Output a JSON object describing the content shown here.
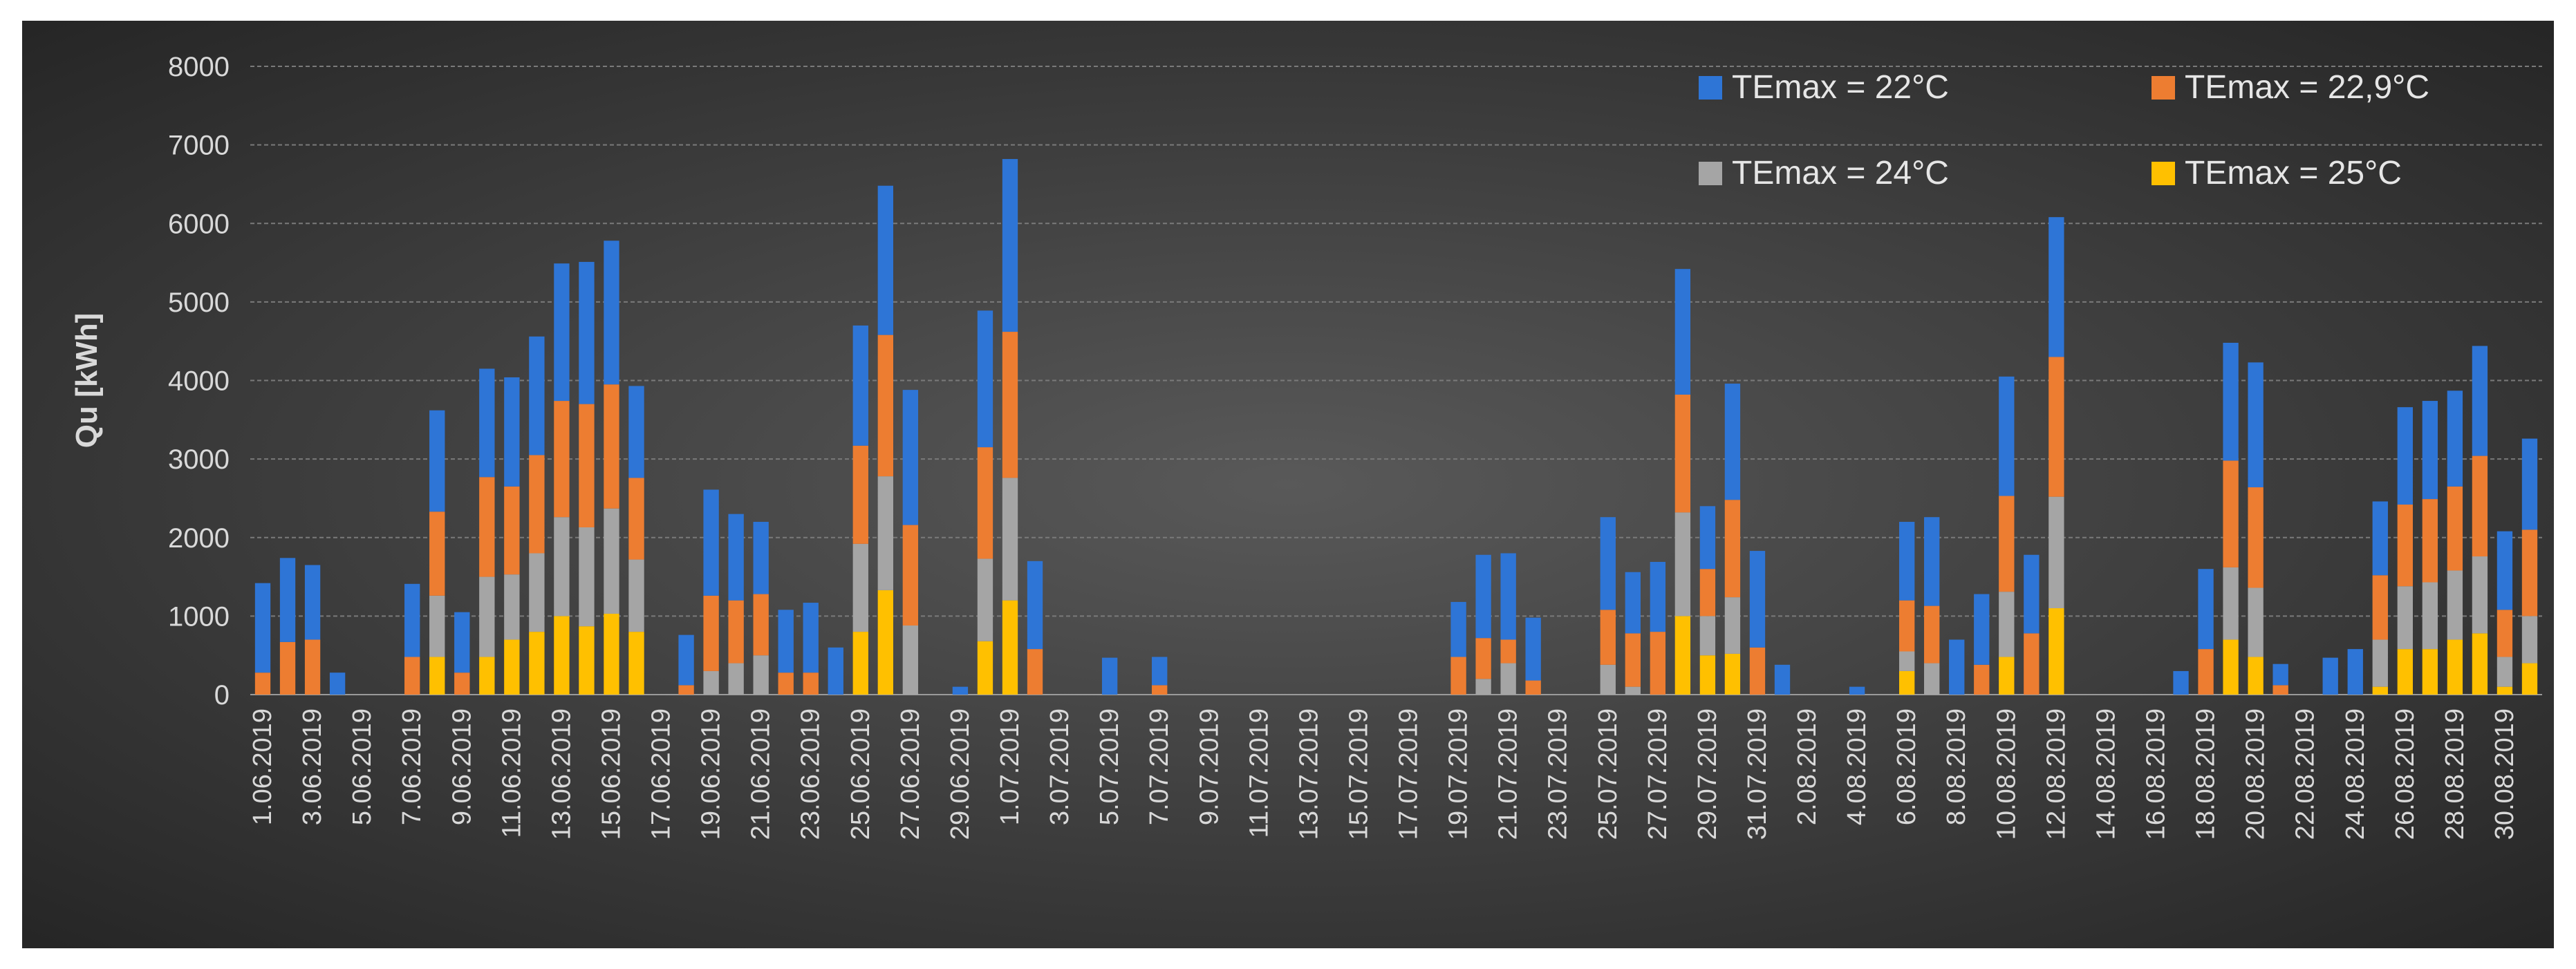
{
  "chart_data": {
    "type": "bar",
    "stacked": true,
    "ylabel": "Qu [kWh]",
    "xlabel": "",
    "ylim": [
      0,
      8000
    ],
    "yticks": [
      0,
      1000,
      2000,
      3000,
      4000,
      5000,
      6000,
      7000,
      8000
    ],
    "grid": true,
    "legend_position": "top-right",
    "categories": [
      "1.06.2019",
      "2.06.2019",
      "3.06.2019",
      "4.06.2019",
      "5.06.2019",
      "6.06.2019",
      "7.06.2019",
      "8.06.2019",
      "9.06.2019",
      "10.06.2019",
      "11.06.2019",
      "12.06.2019",
      "13.06.2019",
      "14.06.2019",
      "15.06.2019",
      "16.06.2019",
      "17.06.2019",
      "18.06.2019",
      "19.06.2019",
      "20.06.2019",
      "21.06.2019",
      "22.06.2019",
      "23.06.2019",
      "24.06.2019",
      "25.06.2019",
      "26.06.2019",
      "27.06.2019",
      "28.06.2019",
      "29.06.2019",
      "30.06.2019",
      "1.07.2019",
      "2.07.2019",
      "3.07.2019",
      "4.07.2019",
      "5.07.2019",
      "6.07.2019",
      "7.07.2019",
      "8.07.2019",
      "9.07.2019",
      "10.07.2019",
      "11.07.2019",
      "12.07.2019",
      "13.07.2019",
      "14.07.2019",
      "15.07.2019",
      "16.07.2019",
      "17.07.2019",
      "18.07.2019",
      "19.07.2019",
      "20.07.2019",
      "21.07.2019",
      "22.07.2019",
      "23.07.2019",
      "24.07.2019",
      "25.07.2019",
      "26.07.2019",
      "27.07.2019",
      "28.07.2019",
      "29.07.2019",
      "30.07.2019",
      "31.07.2019",
      "1.08.2019",
      "2.08.2019",
      "3.08.2019",
      "4.08.2019",
      "5.08.2019",
      "6.08.2019",
      "7.08.2019",
      "8.08.2019",
      "9.08.2019",
      "10.08.2019",
      "11.08.2019",
      "12.08.2019",
      "13.08.2019",
      "14.08.2019",
      "15.08.2019",
      "16.08.2019",
      "17.08.2019",
      "18.08.2019",
      "19.08.2019",
      "20.08.2019",
      "21.08.2019",
      "22.08.2019",
      "23.08.2019",
      "24.08.2019",
      "25.08.2019",
      "26.08.2019",
      "27.08.2019",
      "28.08.2019",
      "29.08.2019",
      "30.08.2019",
      "31.08.2019"
    ],
    "tick_labels": [
      "1.06.2019",
      "3.06.2019",
      "5.06.2019",
      "7.06.2019",
      "9.06.2019",
      "11.06.2019",
      "13.06.2019",
      "15.06.2019",
      "17.06.2019",
      "19.06.2019",
      "21.06.2019",
      "23.06.2019",
      "25.06.2019",
      "27.06.2019",
      "29.06.2019",
      "1.07.2019",
      "3.07.2019",
      "5.07.2019",
      "7.07.2019",
      "9.07.2019",
      "11.07.2019",
      "13.07.2019",
      "15.07.2019",
      "17.07.2019",
      "19.07.2019",
      "21.07.2019",
      "23.07.2019",
      "25.07.2019",
      "27.07.2019",
      "29.07.2019",
      "31.07.2019",
      "2.08.2019",
      "4.08.2019",
      "6.08.2019",
      "8.08.2019",
      "10.08.2019",
      "12.08.2019",
      "14.08.2019",
      "16.08.2019",
      "18.08.2019",
      "20.08.2019",
      "22.08.2019",
      "24.08.2019",
      "26.08.2019",
      "28.08.2019",
      "30.08.2019"
    ],
    "series": [
      {
        "name": "TEmax = 25°C",
        "color": "#ffc000",
        "values": [
          0,
          0,
          0,
          0,
          0,
          0,
          0,
          480,
          0,
          480,
          700,
          800,
          1000,
          870,
          1030,
          800,
          0,
          0,
          0,
          0,
          0,
          0,
          0,
          0,
          800,
          1330,
          0,
          0,
          0,
          680,
          1200,
          0,
          0,
          0,
          0,
          0,
          0,
          0,
          0,
          0,
          0,
          0,
          0,
          0,
          0,
          0,
          0,
          0,
          0,
          0,
          0,
          0,
          0,
          0,
          0,
          0,
          0,
          1000,
          500,
          520,
          0,
          0,
          0,
          0,
          0,
          0,
          300,
          0,
          0,
          0,
          480,
          0,
          1100,
          0,
          0,
          0,
          0,
          0,
          0,
          700,
          480,
          0,
          0,
          0,
          0,
          100,
          580,
          580,
          700,
          780,
          100,
          400
        ]
      },
      {
        "name": "TEmax = 24°C",
        "color": "#a5a5a5",
        "values": [
          0,
          0,
          0,
          0,
          0,
          0,
          0,
          780,
          0,
          1020,
          830,
          1000,
          1260,
          1260,
          1340,
          920,
          0,
          0,
          300,
          400,
          500,
          0,
          0,
          0,
          1120,
          1450,
          880,
          0,
          0,
          1050,
          1560,
          0,
          0,
          0,
          0,
          0,
          0,
          0,
          0,
          0,
          0,
          0,
          0,
          0,
          0,
          0,
          0,
          0,
          0,
          200,
          400,
          0,
          0,
          0,
          380,
          100,
          0,
          1320,
          500,
          720,
          0,
          0,
          0,
          0,
          0,
          0,
          250,
          400,
          0,
          0,
          830,
          0,
          1420,
          0,
          0,
          0,
          0,
          0,
          0,
          920,
          880,
          0,
          0,
          0,
          0,
          600,
          800,
          850,
          880,
          980,
          380,
          600
        ]
      },
      {
        "name": "TEmax = 22,9°C",
        "color": "#ed7d31",
        "values": [
          280,
          670,
          700,
          0,
          0,
          0,
          480,
          1070,
          280,
          1270,
          1120,
          1250,
          1480,
          1570,
          1580,
          1040,
          0,
          120,
          960,
          800,
          780,
          280,
          280,
          0,
          1250,
          1800,
          1280,
          0,
          0,
          1420,
          1860,
          580,
          0,
          0,
          0,
          0,
          120,
          0,
          0,
          0,
          0,
          0,
          0,
          0,
          0,
          0,
          0,
          0,
          480,
          520,
          300,
          180,
          0,
          0,
          700,
          680,
          800,
          1500,
          600,
          1240,
          600,
          0,
          0,
          0,
          0,
          0,
          650,
          730,
          0,
          380,
          1220,
          780,
          1780,
          0,
          0,
          0,
          0,
          0,
          580,
          1360,
          1280,
          120,
          0,
          0,
          0,
          820,
          1040,
          1060,
          1070,
          1280,
          600,
          1100
        ]
      },
      {
        "name": "TEmax = 22°C",
        "color": "#2e75d6",
        "values": [
          1140,
          1070,
          950,
          280,
          0,
          0,
          930,
          1290,
          770,
          1380,
          1390,
          1510,
          1750,
          1810,
          1830,
          1170,
          0,
          640,
          1350,
          1100,
          920,
          800,
          890,
          600,
          1530,
          1900,
          1720,
          0,
          100,
          1740,
          2200,
          1120,
          0,
          0,
          470,
          0,
          360,
          0,
          0,
          0,
          0,
          0,
          0,
          0,
          0,
          0,
          0,
          0,
          700,
          1060,
          1100,
          800,
          0,
          0,
          1180,
          780,
          890,
          1600,
          800,
          1480,
          1230,
          380,
          0,
          0,
          100,
          0,
          1000,
          1130,
          700,
          900,
          1520,
          1000,
          1780,
          0,
          0,
          0,
          0,
          300,
          1020,
          1500,
          1590,
          270,
          0,
          470,
          580,
          940,
          1240,
          1250,
          1220,
          1400,
          1000,
          1160
        ]
      }
    ],
    "legend": [
      {
        "label": "TEmax = 22°C",
        "color": "#2e75d6"
      },
      {
        "label": "TEmax = 22,9°C",
        "color": "#ed7d31"
      },
      {
        "label": "TEmax = 24°C",
        "color": "#a5a5a5"
      },
      {
        "label": "TEmax = 25°C",
        "color": "#ffc000"
      }
    ]
  }
}
